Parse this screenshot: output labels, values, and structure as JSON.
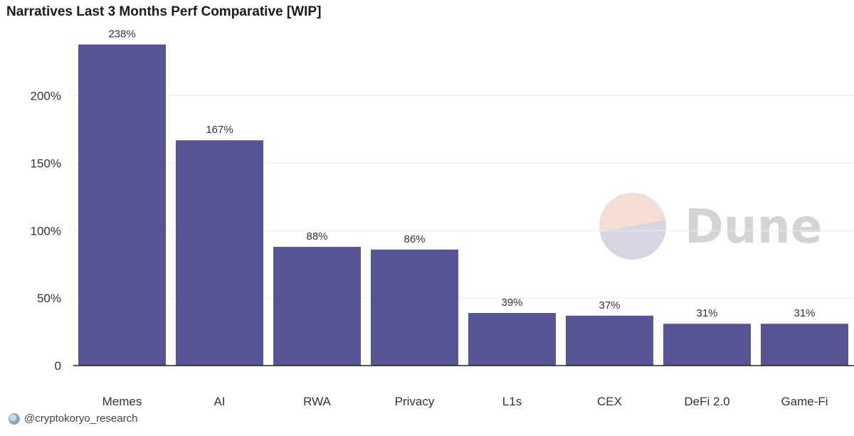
{
  "colors": {
    "bar": "#585596",
    "grid": "#ececec",
    "axis": "#222222",
    "text": "#333333",
    "watermark_text": "#d4d4d4",
    "watermark_top": "#f4ddd3",
    "watermark_bottom": "#d6d5e4"
  },
  "watermark": {
    "text": "Dune"
  },
  "footer": {
    "handle": "@cryptokoryo_research",
    "icon": "avatar-icon"
  },
  "chart_data": {
    "type": "bar",
    "title": "Narratives Last 3 Months Perf Comparative [WIP]",
    "xlabel": "",
    "ylabel": "",
    "categories": [
      "Memes",
      "AI",
      "RWA",
      "Privacy",
      "L1s",
      "CEX",
      "DeFi 2.0",
      "Game-Fi"
    ],
    "values": [
      238,
      167,
      88,
      86,
      39,
      37,
      31,
      31
    ],
    "value_labels": [
      "238%",
      "167%",
      "88%",
      "86%",
      "39%",
      "37%",
      "31%",
      "31%"
    ],
    "ylim": [
      0,
      240
    ],
    "yticks": [
      0,
      50,
      100,
      150,
      200
    ],
    "ytick_labels": [
      "0",
      "50%",
      "100%",
      "150%",
      "200%"
    ],
    "grid": true,
    "legend": "none"
  }
}
